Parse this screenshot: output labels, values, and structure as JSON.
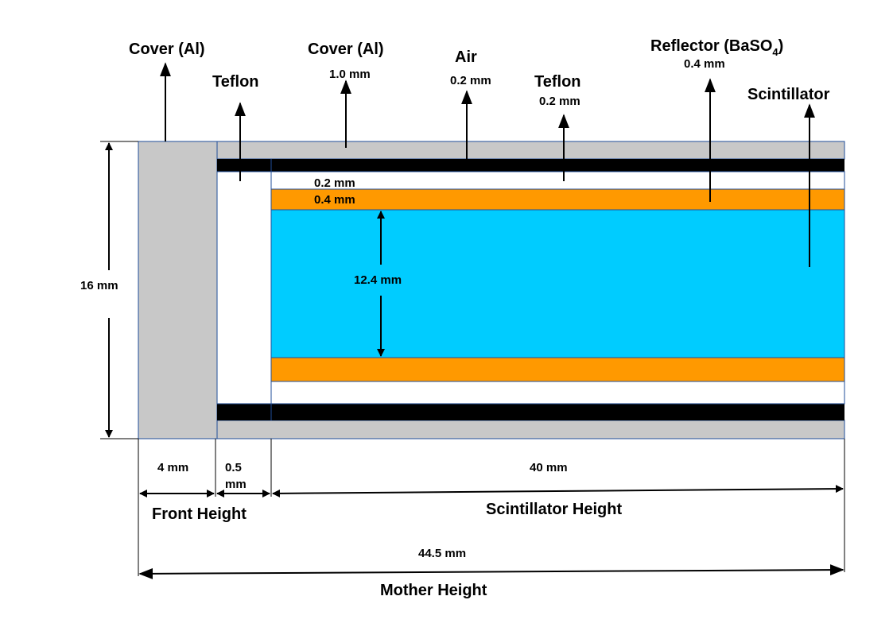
{
  "colors": {
    "cover": "#c8c8c8",
    "air": "#000000",
    "teflon": "#ffffff",
    "reflector": "#ff9900",
    "scintillator": "#00ccff"
  },
  "labels": {
    "cover_left": "Cover (Al)",
    "cover_top": "Cover (Al)",
    "cover_top_dim": "1.0 mm",
    "teflon_left": "Teflon",
    "air": "Air",
    "air_dim": "0.2 mm",
    "teflon_top": "Teflon",
    "teflon_top_dim": "0.2 mm",
    "reflector_main": "Reflector (BaSO",
    "reflector_sub": "4",
    "reflector_close": ")",
    "reflector_dim": "0.4 mm",
    "scintillator": "Scintillator",
    "inner_teflon_dim": "0.2 mm",
    "inner_reflector_dim": "0.4 mm",
    "scint_thickness": "12.4 mm",
    "total_thickness": "16 mm",
    "front_cover_width": "4 mm",
    "teflon_width_line1": "0.5",
    "teflon_width_line2": "mm",
    "scint_length": "40 mm",
    "front_height": "Front Height",
    "scintillator_height": "Scintillator Height",
    "total_length": "44.5 mm",
    "mother_height": "Mother Height"
  }
}
